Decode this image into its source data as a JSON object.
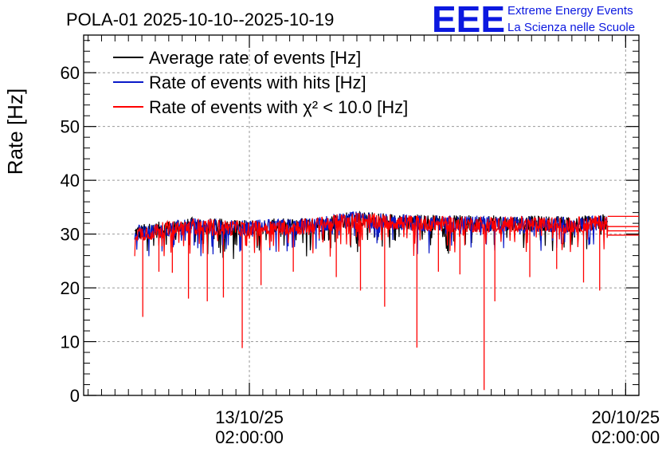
{
  "chart_data": {
    "type": "line",
    "title": "POLA-01 2025-10-10--2025-10-19",
    "ylabel": "Rate [Hz]",
    "xlabel": "",
    "ylim": [
      0,
      67
    ],
    "yticks": [
      0,
      10,
      20,
      30,
      40,
      50,
      60
    ],
    "ytick_labels": [
      "0",
      "10",
      "20",
      "30",
      "40",
      "50",
      "60"
    ],
    "x_unit": "days since 2025-10-10 00:00",
    "xlim": [
      0.0,
      10.33
    ],
    "xticks": [
      {
        "x": 3.083,
        "date": "13/10/25",
        "time": "02:00:00"
      },
      {
        "x": 10.083,
        "date": "20/10/25",
        "time": "02:00:00"
      }
    ],
    "grid": true,
    "legend_position": "top-left",
    "series": [
      {
        "name": "Average rate of events [Hz]",
        "color": "#000000",
        "x": [
          0.95,
          2.0,
          3.0,
          4.2,
          5.0,
          6.0,
          7.0,
          8.0,
          9.0,
          9.75
        ],
        "values": [
          30.2,
          31.6,
          31.2,
          31.6,
          32.8,
          32.3,
          32.0,
          32.0,
          31.8,
          32.3
        ]
      },
      {
        "name": "Rate of events with hits [Hz]",
        "color": "#0a1ac8",
        "x": [
          0.95,
          2.0,
          3.0,
          4.2,
          5.0,
          6.0,
          7.0,
          8.0,
          9.0,
          9.75
        ],
        "values": [
          30.1,
          31.5,
          31.1,
          31.5,
          32.7,
          32.2,
          31.9,
          31.9,
          31.7,
          32.2
        ]
      },
      {
        "name": "Rate of events with χ² < 10.0 [Hz]",
        "color": "#ff0000",
        "x": [
          0.95,
          2.0,
          3.0,
          4.2,
          5.0,
          6.0,
          7.0,
          8.0,
          9.0,
          9.75
        ],
        "values": [
          30.0,
          31.5,
          31.0,
          31.5,
          32.6,
          32.1,
          31.8,
          31.8,
          31.6,
          32.1
        ],
        "dips": [
          {
            "x": 1.1,
            "value": 14.6
          },
          {
            "x": 1.4,
            "value": 23.0
          },
          {
            "x": 1.65,
            "value": 22.8
          },
          {
            "x": 1.95,
            "value": 18.0
          },
          {
            "x": 2.3,
            "value": 17.5
          },
          {
            "x": 2.6,
            "value": 18.2
          },
          {
            "x": 2.95,
            "value": 8.8
          },
          {
            "x": 3.3,
            "value": 20.5
          },
          {
            "x": 3.9,
            "value": 23.0
          },
          {
            "x": 4.7,
            "value": 22.0
          },
          {
            "x": 5.15,
            "value": 19.5
          },
          {
            "x": 5.6,
            "value": 16.5
          },
          {
            "x": 6.2,
            "value": 8.9
          },
          {
            "x": 6.6,
            "value": 23.0
          },
          {
            "x": 7.0,
            "value": 22.5
          },
          {
            "x": 7.45,
            "value": 1.0
          },
          {
            "x": 7.65,
            "value": 17.5
          },
          {
            "x": 8.3,
            "value": 22.0
          },
          {
            "x": 8.8,
            "value": 23.5
          },
          {
            "x": 9.3,
            "value": 21.0
          },
          {
            "x": 9.6,
            "value": 19.5
          }
        ]
      }
    ],
    "right_edge_lines": [
      33.3,
      31.4,
      30.6,
      29.8
    ]
  },
  "brand": {
    "logo_text": "EEE",
    "line1": "Extreme Energy Events",
    "line2": "La Scienza nelle Scuole"
  }
}
